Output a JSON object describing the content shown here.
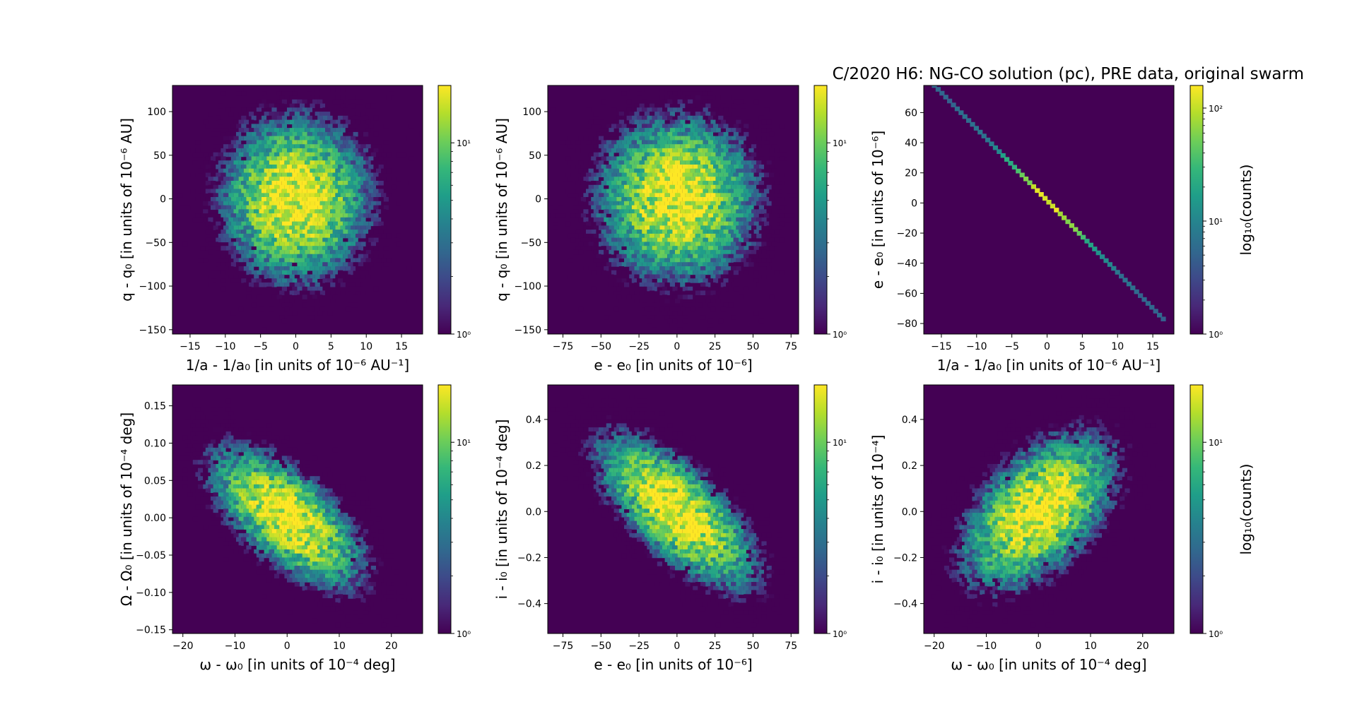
{
  "figure": {
    "title": "C/2020 H6: NG-CO solution (pc), PRE data, original swarm"
  },
  "style": {
    "colormap": [
      "#440154",
      "#482878",
      "#3e4989",
      "#31688e",
      "#26828e",
      "#1f9e89",
      "#35b779",
      "#6ece58",
      "#b5de2b",
      "#fde725"
    ],
    "background": "#440154",
    "axis_color": "#000000"
  },
  "chart_data": [
    {
      "type": "heatmap",
      "panel": "top-left",
      "xlabel": "1/a - 1/a₀ [in units of 10⁻⁶ AU⁻¹]",
      "ylabel": "q - q₀ [in units of 10⁻⁶ AU]",
      "xlim": [
        -17.5,
        18
      ],
      "ylim": [
        -155,
        130
      ],
      "xticks": [
        -15,
        -10,
        -5,
        0,
        5,
        10,
        15
      ],
      "yticks": [
        -150,
        -100,
        -50,
        0,
        50,
        100
      ],
      "colorbar": {
        "label": "",
        "ticks": [
          "10⁰",
          "10¹"
        ],
        "log_min": 0,
        "log_max": 1.3
      },
      "distribution": {
        "cx": 0,
        "cy": 0,
        "sx": 5,
        "sy": 45,
        "rho": 0,
        "peak_log": 1.3
      }
    },
    {
      "type": "heatmap",
      "panel": "top-middle",
      "xlabel": "e - e₀ [in units of 10⁻⁶]",
      "ylabel": "q - q₀ [in units of 10⁻⁶ AU]",
      "xlim": [
        -85,
        80
      ],
      "ylim": [
        -155,
        130
      ],
      "xticks": [
        -75,
        -50,
        -25,
        0,
        25,
        50,
        75
      ],
      "yticks": [
        -150,
        -100,
        -50,
        0,
        50,
        100
      ],
      "colorbar": {
        "label": "",
        "ticks": [
          "10⁰",
          "10¹"
        ],
        "log_min": 0,
        "log_max": 1.3
      },
      "distribution": {
        "cx": 0,
        "cy": 0,
        "sx": 25,
        "sy": 45,
        "rho": 0,
        "peak_log": 1.3
      }
    },
    {
      "type": "heatmap",
      "panel": "top-right",
      "xlabel": "1/a - 1/a₀ [in units of 10⁻⁶ AU⁻¹]",
      "ylabel": "e - e₀ [in units of 10⁻⁶]",
      "xlim": [
        -17.5,
        18
      ],
      "ylim": [
        -87,
        78
      ],
      "xticks": [
        -15,
        -10,
        -5,
        0,
        5,
        10,
        15
      ],
      "yticks": [
        -80,
        -60,
        -40,
        -20,
        0,
        20,
        40,
        60
      ],
      "colorbar": {
        "label": "log₁₀(counts)",
        "ticks": [
          "10⁰",
          "10¹",
          "10²"
        ],
        "log_min": 0,
        "log_max": 2.2
      },
      "line": {
        "x_start": -16,
        "y_start": 78,
        "x_end": 16.5,
        "y_end": -77,
        "peak_log": 2.1
      }
    },
    {
      "type": "heatmap",
      "panel": "bottom-left",
      "xlabel": "ω - ω₀ [in units of 10⁻⁴ deg]",
      "ylabel": "Ω - Ω₀ [in units of 10⁻⁴ deg]",
      "xlim": [
        -22,
        26
      ],
      "ylim": [
        -0.155,
        0.178
      ],
      "xticks": [
        -20,
        -10,
        0,
        10,
        20
      ],
      "yticks": [
        -0.15,
        -0.1,
        -0.05,
        0.0,
        0.05,
        0.1,
        0.15
      ],
      "colorbar": {
        "label": "",
        "ticks": [
          "10⁰",
          "10¹"
        ],
        "log_min": 0,
        "log_max": 1.3
      },
      "distribution": {
        "cx": 0,
        "cy": 0,
        "sx": 7,
        "sy": 0.045,
        "rho": -0.65,
        "peak_log": 1.3
      }
    },
    {
      "type": "heatmap",
      "panel": "bottom-middle",
      "xlabel": "e - e₀ [in units of 10⁻⁶]",
      "ylabel": "i - i₀ [in units of 10⁻⁴ deg]",
      "xlim": [
        -85,
        80
      ],
      "ylim": [
        -0.53,
        0.55
      ],
      "xticks": [
        -75,
        -50,
        -25,
        0,
        25,
        50,
        75
      ],
      "yticks": [
        -0.4,
        -0.2,
        0.0,
        0.2,
        0.4
      ],
      "colorbar": {
        "label": "",
        "ticks": [
          "10⁰",
          "10¹"
        ],
        "log_min": 0,
        "log_max": 1.3
      },
      "distribution": {
        "cx": 0,
        "cy": 0,
        "sx": 25,
        "sy": 0.16,
        "rho": -0.7,
        "peak_log": 1.3
      }
    },
    {
      "type": "heatmap",
      "panel": "bottom-right",
      "xlabel": "ω - ω₀ [in units of 10⁻⁴ deg]",
      "ylabel": "i - i₀ [in units of 10⁻⁴]",
      "xlim": [
        -22,
        26
      ],
      "ylim": [
        -0.53,
        0.55
      ],
      "xticks": [
        -20,
        -10,
        0,
        10,
        20
      ],
      "yticks": [
        -0.4,
        -0.2,
        0.0,
        0.2,
        0.4
      ],
      "colorbar": {
        "label": "log₁₀(counts)",
        "ticks": [
          "10⁰",
          "10¹"
        ],
        "log_min": 0,
        "log_max": 1.3
      },
      "distribution": {
        "cx": 0,
        "cy": 0,
        "sx": 7,
        "sy": 0.16,
        "rho": 0.5,
        "peak_log": 1.3
      }
    }
  ]
}
